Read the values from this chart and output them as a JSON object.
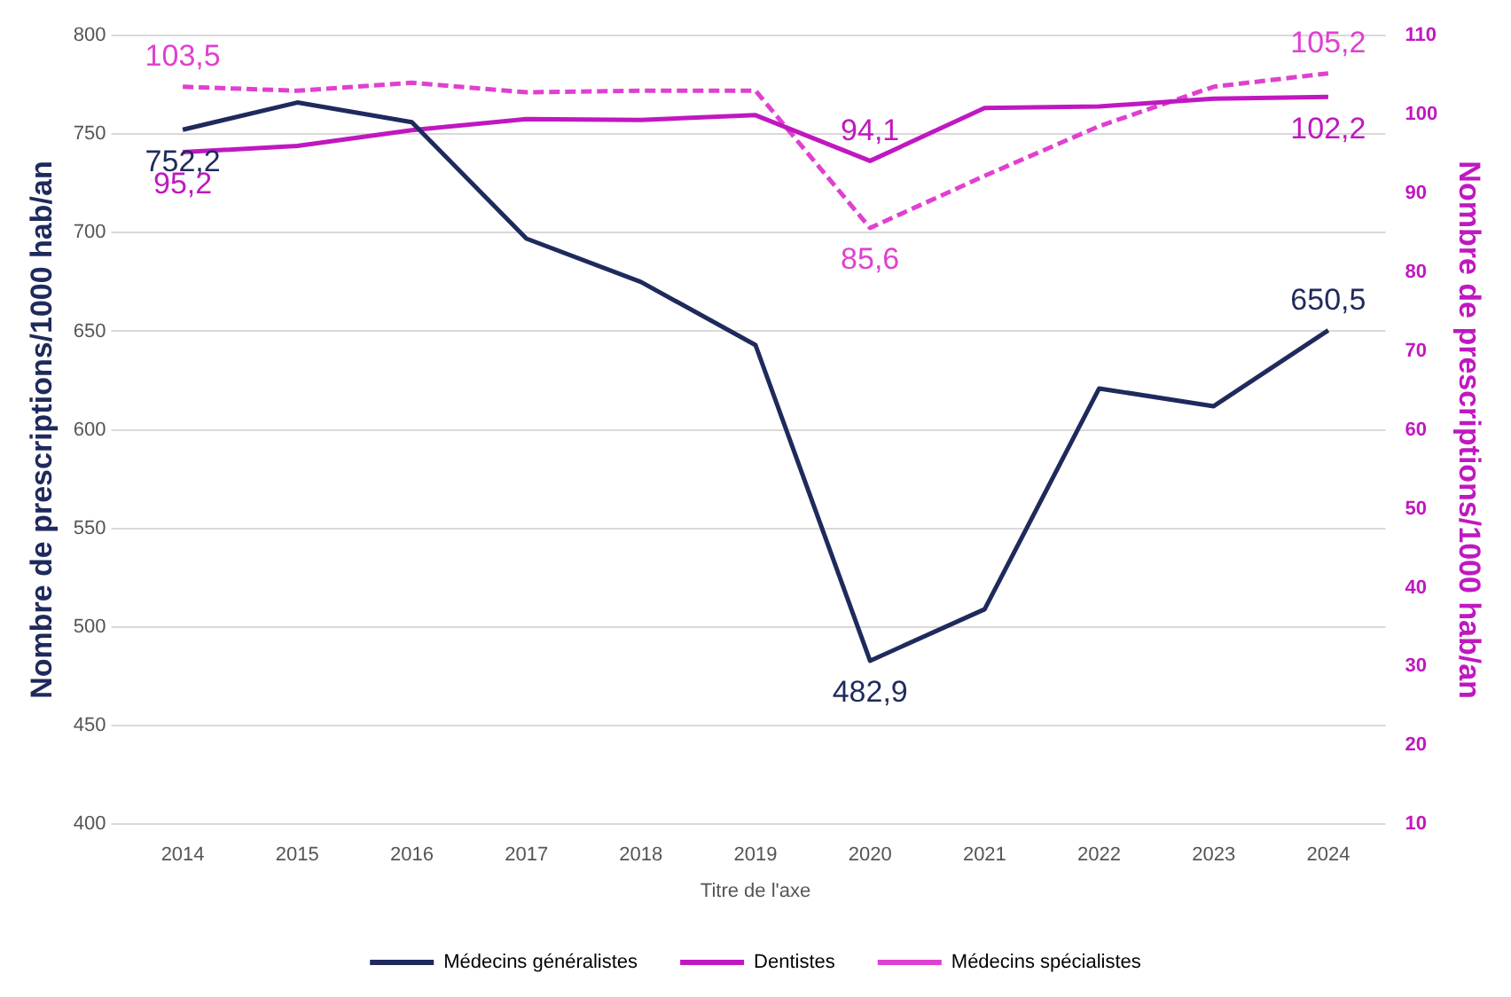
{
  "chart_data": {
    "type": "line",
    "xlabel": "Titre de l'axe",
    "ylabel": "Nombre de prescriptions/1000 hab/an",
    "y2label": "Nombre de prescriptions/1000 hab/an",
    "categories": [
      "2014",
      "2015",
      "2016",
      "2017",
      "2018",
      "2019",
      "2020",
      "2021",
      "2022",
      "2023",
      "2024"
    ],
    "series": [
      {
        "name": "Médecins généralistes",
        "color": "#1f2a5c",
        "line_style": "solid",
        "values": [
          752.2,
          766,
          756,
          697,
          675,
          643,
          482.9,
          509,
          621,
          612,
          650.5
        ],
        "value_labels": [
          "752,2",
          null,
          null,
          null,
          null,
          null,
          "482,9",
          null,
          null,
          null,
          "650,5"
        ]
      },
      {
        "name": "Dentistes",
        "color": "#c018c0",
        "axis": "y2",
        "line_style": "solid",
        "values": [
          95.2,
          96,
          98,
          99.4,
          99.3,
          99.9,
          94.1,
          100.8,
          101,
          102,
          102.2
        ],
        "value_labels": [
          "95,2",
          null,
          null,
          null,
          null,
          null,
          "94,1",
          null,
          null,
          null,
          "102,2"
        ]
      },
      {
        "name": "Médecins spécialistes",
        "color": "#e040d0",
        "axis": "y2",
        "line_style": "dashed",
        "values": [
          103.5,
          103,
          104,
          102.8,
          103,
          103,
          85.6,
          92.2,
          98.5,
          103.5,
          105.2
        ],
        "value_labels": [
          "103,5",
          null,
          null,
          null,
          null,
          null,
          "85,6",
          null,
          null,
          null,
          "105,2"
        ]
      }
    ],
    "ylim": [
      400,
      800
    ],
    "yticks": [
      400,
      450,
      500,
      550,
      600,
      650,
      700,
      750,
      800
    ],
    "y2lim": [
      10,
      110
    ],
    "y2ticks": [
      10,
      20,
      30,
      40,
      50,
      60,
      70,
      80,
      90,
      100,
      110
    ],
    "grid": "y",
    "legend": "bottom",
    "marker": "none"
  }
}
